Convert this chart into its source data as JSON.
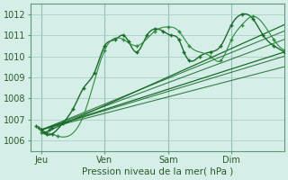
{
  "title": "",
  "xlabel": "Pression niveau de la mer( hPa )",
  "ylabel": "",
  "ylim": [
    1005.5,
    1012.5
  ],
  "xlim": [
    0,
    96
  ],
  "yticks": [
    1006,
    1007,
    1008,
    1009,
    1010,
    1011,
    1012
  ],
  "xtick_positions": [
    4,
    28,
    52,
    76
  ],
  "xtick_labels": [
    "Jeu",
    "Ven",
    "Sam",
    "Dim"
  ],
  "bg_color": "#d6eee8",
  "plot_bg_color": "#d6eee8",
  "grid_color": "#aacfca",
  "line_color": "#1a6b2a",
  "line_color2": "#2e8b3e",
  "vline_positions": [
    4,
    28,
    52,
    76
  ],
  "vline_color": "#7baaa5"
}
